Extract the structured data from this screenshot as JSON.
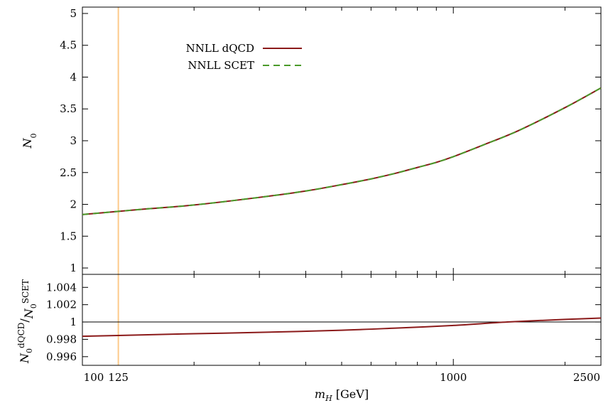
{
  "chart_data": [
    {
      "panel": "main",
      "type": "line",
      "x_scale": "log",
      "xlim": [
        100,
        2500
      ],
      "ylim": [
        0.9,
        5.1
      ],
      "ylabel": "N_0",
      "y_ticks": [
        "1",
        "1.5",
        "2",
        "2.5",
        "3",
        "3.5",
        "4",
        "4.5",
        "5"
      ],
      "y_tick_values": [
        1,
        1.5,
        2,
        2.5,
        3,
        3.5,
        4,
        4.5,
        5
      ],
      "vline_x": 125,
      "legend_position": "top-left",
      "x": [
        100,
        125,
        150,
        200,
        300,
        400,
        500,
        600,
        700,
        800,
        900,
        1000,
        1200,
        1500,
        2000,
        2500
      ],
      "series": [
        {
          "name": "NNLL dQCD",
          "color": "#8b1a1a",
          "style": "solid",
          "values": [
            1.84,
            1.89,
            1.93,
            1.99,
            2.11,
            2.21,
            2.31,
            2.4,
            2.49,
            2.58,
            2.66,
            2.75,
            2.93,
            3.16,
            3.52,
            3.83
          ]
        },
        {
          "name": "NNLL SCET",
          "color": "#4a9a2a",
          "style": "dashed",
          "values": [
            1.84,
            1.89,
            1.93,
            1.99,
            2.11,
            2.21,
            2.31,
            2.4,
            2.49,
            2.58,
            2.66,
            2.75,
            2.93,
            3.16,
            3.52,
            3.83
          ]
        }
      ]
    },
    {
      "panel": "ratio",
      "type": "line",
      "x_scale": "log",
      "xlim": [
        100,
        2500
      ],
      "ylim": [
        0.995,
        1.0055
      ],
      "xlabel_main": "m",
      "xlabel_sub": "H",
      "xlabel_unit": "[GeV]",
      "ylabel_num": "dQCD",
      "ylabel_den": "SCET",
      "ylabel_sym": "N",
      "ylabel_sub": "0",
      "ylabel_slash": "/",
      "x_ticks": [
        "100",
        "125",
        "1000",
        "2500"
      ],
      "x_tick_values": [
        100,
        125,
        1000,
        2500
      ],
      "y_ticks": [
        "0.996",
        "0.998",
        "1",
        "1.002",
        "1.004"
      ],
      "y_tick_values": [
        0.996,
        0.998,
        1.0,
        1.002,
        1.004
      ],
      "hline_y": 1.0,
      "vline_x": 125,
      "x": [
        100,
        125,
        200,
        300,
        500,
        700,
        1000,
        1400,
        2000,
        2500
      ],
      "series": [
        {
          "name": "ratio",
          "color": "#8b1a1a",
          "style": "solid",
          "values": [
            0.99835,
            0.99845,
            0.99865,
            0.9988,
            0.99905,
            0.9993,
            0.9996,
            1.0,
            1.0003,
            1.00045
          ]
        }
      ]
    }
  ]
}
